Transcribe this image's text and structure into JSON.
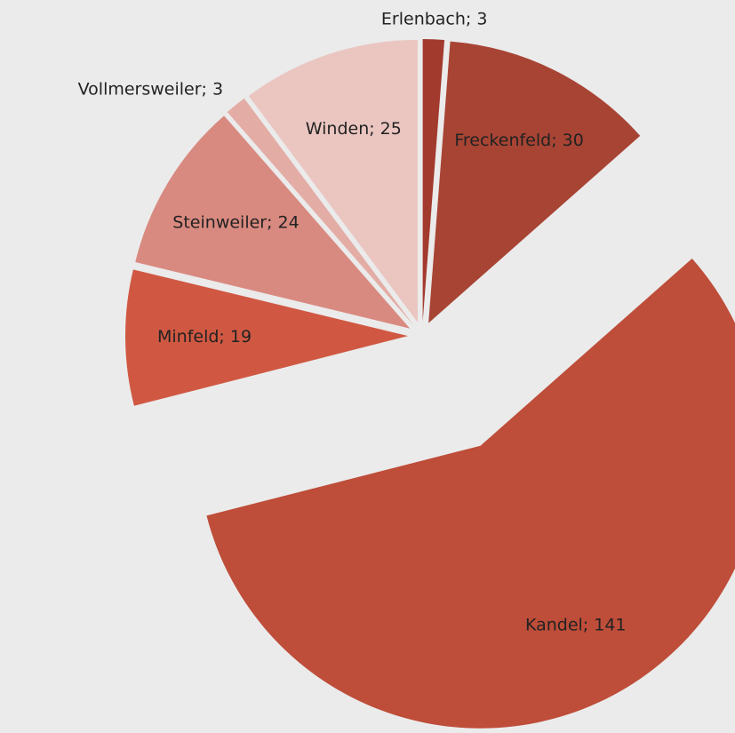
{
  "chart_data": {
    "type": "pie",
    "categories": [
      "Erlenbach",
      "Freckenfeld",
      "Kandel",
      "Minfeld",
      "Steinweiler",
      "Vollmersweiler",
      "Winden"
    ],
    "values": [
      3,
      30,
      141,
      19,
      24,
      3,
      25
    ],
    "value_labels": [
      "Erlenbach; 3",
      "Freckenfeld; 30",
      "Kandel; 141",
      "Minfeld; 19",
      "Steinweiler; 24",
      "Vollmersweiler; 3",
      "Winden; 25"
    ],
    "colors": [
      "#a23a2d",
      "#a84434",
      "#be4d39",
      "#d05842",
      "#d98a80",
      "#e3aca5",
      "#ebc6c1"
    ]
  }
}
